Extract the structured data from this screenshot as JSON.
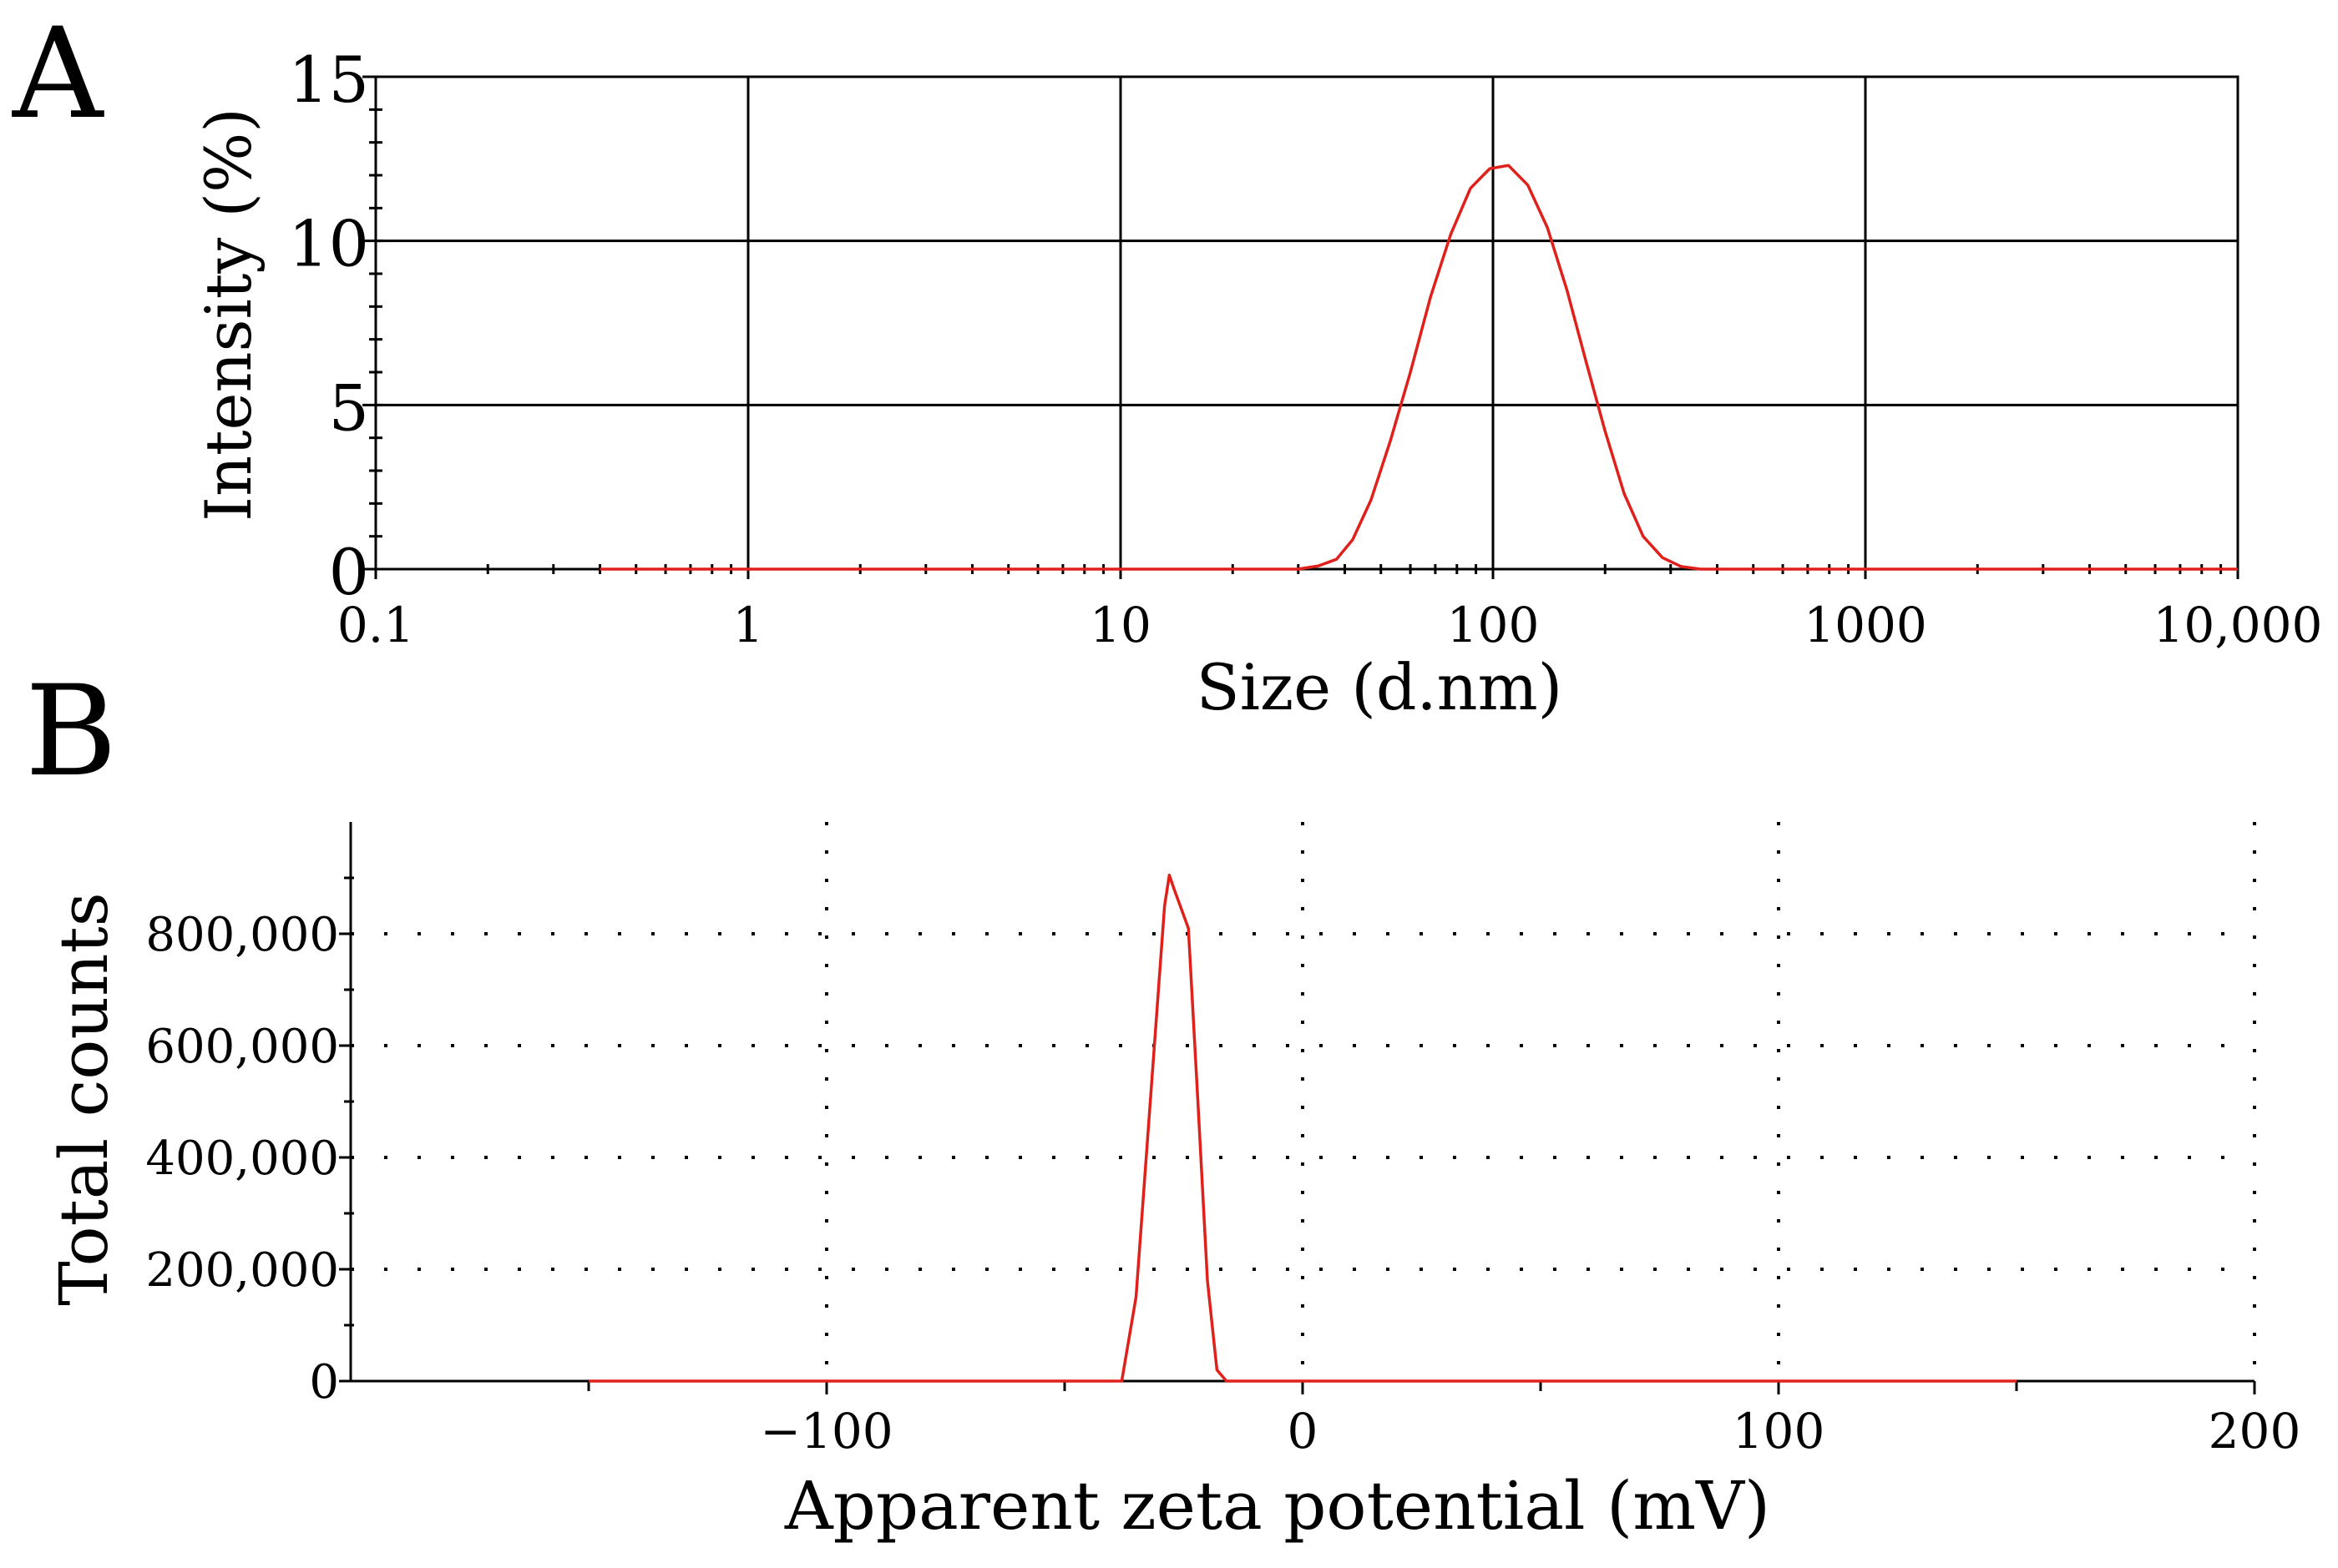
{
  "colors": {
    "background": "#ffffff",
    "axis": "#000000",
    "grid": "#000000",
    "series": "#e0201b"
  },
  "chart_data": [
    {
      "panel": "A",
      "type": "line",
      "x_scale": "log",
      "xlabel": "Size (d.nm)",
      "ylabel": "Intensity (%)",
      "xlim": [
        0.1,
        10000
      ],
      "ylim": [
        0,
        15
      ],
      "x_ticks": [
        0.1,
        1,
        10,
        100,
        1000,
        10000
      ],
      "x_tick_labels": [
        "0.1",
        "1",
        "10",
        "100",
        "1000",
        "10,000"
      ],
      "y_ticks": [
        0,
        5,
        10,
        15
      ],
      "y_tick_labels": [
        "0",
        "5",
        "10",
        "15"
      ],
      "grid": "solid",
      "series": [
        {
          "name": "Intensity",
          "x": [
            0.4,
            1,
            10,
            30,
            34,
            38,
            42,
            47,
            53,
            60,
            68,
            77,
            87,
            98,
            110,
            124,
            140,
            158,
            178,
            200,
            225,
            253,
            285,
            320,
            360,
            400,
            1000,
            10000
          ],
          "y": [
            0,
            0,
            0,
            0,
            0.1,
            0.3,
            0.9,
            2.1,
            3.9,
            6.0,
            8.3,
            10.2,
            11.6,
            12.2,
            12.3,
            11.7,
            10.4,
            8.5,
            6.3,
            4.2,
            2.3,
            1.0,
            0.35,
            0.08,
            0,
            0,
            0,
            0
          ]
        }
      ]
    },
    {
      "panel": "B",
      "type": "line",
      "xlabel": "Apparent zeta potential (mV)",
      "ylabel": "Total counts",
      "xlim": [
        -200,
        200
      ],
      "ylim": [
        0,
        1000000
      ],
      "x_ticks": [
        -100,
        0,
        100,
        200
      ],
      "x_tick_labels": [
        "−100",
        "0",
        "100",
        "200"
      ],
      "y_ticks": [
        0,
        200000,
        400000,
        600000,
        800000
      ],
      "y_tick_labels": [
        "0",
        "200,000",
        "400,000",
        "600,000",
        "800,000"
      ],
      "grid": "dotted",
      "series": [
        {
          "name": "Total counts",
          "x": [
            -150,
            -100,
            -50,
            -38,
            -35,
            -32,
            -29,
            -28,
            -27,
            -24,
            -22,
            -20,
            -18,
            -16,
            0,
            50,
            100,
            150
          ],
          "y": [
            0,
            0,
            0,
            0,
            150000,
            500000,
            850000,
            905000,
            880000,
            810000,
            500000,
            180000,
            20000,
            0,
            0,
            0,
            0,
            0
          ]
        }
      ]
    }
  ],
  "panel_labels": [
    "A",
    "B"
  ]
}
